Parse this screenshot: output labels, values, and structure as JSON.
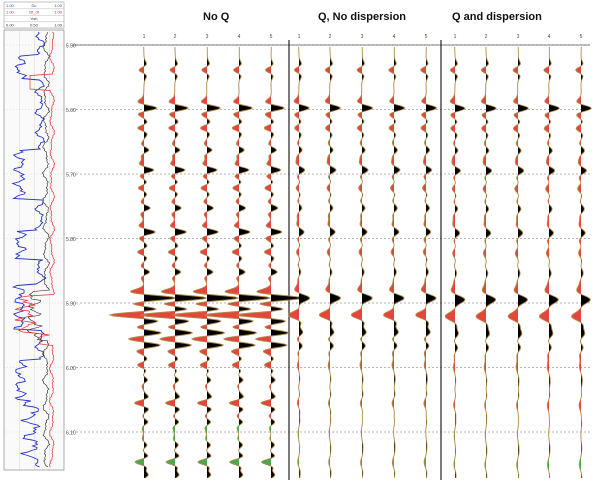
{
  "panels": [
    {
      "title": "No Q",
      "trace_labels": [
        "1",
        "2",
        "3",
        "4",
        "5"
      ]
    },
    {
      "title": "Q, No dispersion",
      "trace_labels": [
        "1",
        "2",
        "3",
        "4",
        "5"
      ]
    },
    {
      "title": "Q and dispersion",
      "trace_labels": [
        "1",
        "2",
        "3",
        "4",
        "5"
      ]
    }
  ],
  "time_axis": {
    "ticks": [
      "5.50",
      "5.60",
      "5.70",
      "5.80",
      "5.90",
      "6.00",
      "6.10"
    ]
  },
  "log_tracks": {
    "header_labels": [
      {
        "left": "1.00",
        "mid": "Dc",
        "right": "1.00"
      },
      {
        "left": "1.00",
        "mid": "Dt_dl",
        "right": "1.00"
      },
      {
        "left": "",
        "mid": "Vsh",
        "right": ""
      },
      {
        "left": "0.00",
        "mid": "0.50",
        "right": "1.00"
      }
    ]
  },
  "colors": {
    "wavelet_fill": "#000000",
    "trough_fill_red": "#e0241b",
    "trough_fill_green": "#2a9a2a",
    "wiggle_line": "#b08a4a",
    "log_blue": "#2433c8",
    "log_black": "#222222",
    "log_red": "#e83030",
    "grid": "#9a9a9a",
    "divider": "#222222"
  }
}
